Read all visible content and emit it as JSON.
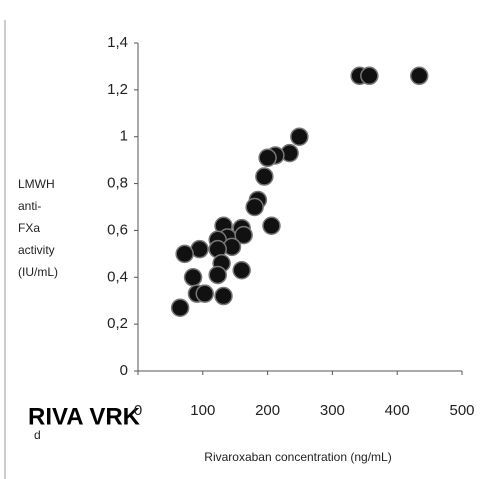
{
  "chart_data": {
    "type": "scatter",
    "xlabel": "Rivaroxaban concentration  (ng/mL)",
    "ylabel": [
      "LMWH",
      "anti-",
      "FXa",
      "activity",
      "(IU/mL)"
    ],
    "annotations": [
      "RIVA VRK",
      "d"
    ],
    "color": "#111111",
    "xlim": [
      0,
      500
    ],
    "ylim": [
      0,
      1.4
    ],
    "xticks": [
      0,
      100,
      200,
      300,
      400,
      500
    ],
    "yticks": [
      0,
      {
        "value": 0.2,
        "label": "0,2"
      },
      {
        "value": 0.4,
        "label": "0,4"
      },
      {
        "value": 0.6,
        "label": "0,6"
      },
      {
        "value": 0.8,
        "label": "0,8"
      },
      1,
      {
        "value": 1.2,
        "label": "1,2"
      },
      {
        "value": 1.4,
        "label": "1,4"
      }
    ],
    "x": [
      342,
      357,
      434,
      249,
      234,
      212,
      200,
      195,
      185,
      180,
      206,
      160,
      132,
      138,
      123,
      163,
      145,
      123,
      95,
      72,
      129,
      160,
      123,
      85,
      91,
      103,
      132,
      65
    ],
    "values": [
      1.26,
      1.26,
      1.26,
      1.0,
      0.93,
      0.92,
      0.91,
      0.83,
      0.73,
      0.7,
      0.62,
      0.61,
      0.62,
      0.57,
      0.56,
      0.58,
      0.53,
      0.52,
      0.52,
      0.5,
      0.46,
      0.43,
      0.41,
      0.4,
      0.33,
      0.33,
      0.32,
      0.27
    ]
  }
}
